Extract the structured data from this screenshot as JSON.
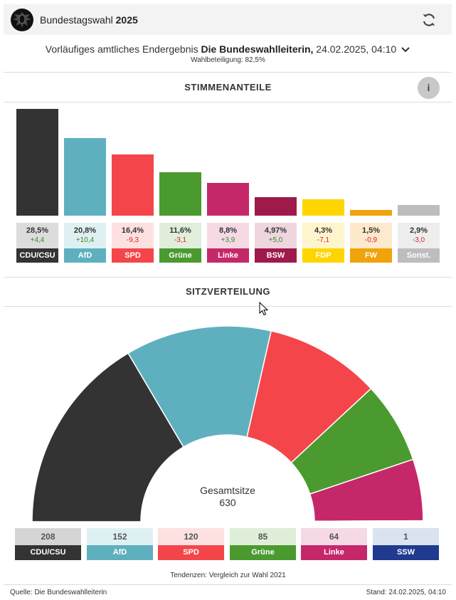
{
  "header": {
    "title_prefix": "Bundestagswahl ",
    "title_year": "2025",
    "logo_icon": "bundesadler-icon",
    "refresh_icon": "refresh-icon"
  },
  "result": {
    "text_prefix": "Vorläufiges amtliches Endergebnis ",
    "authority": "Die Bundeswahlleiterin,",
    "datetime": " 24.02.2025, 04:10",
    "turnout": "Wahlbeteiligung: 82,5%"
  },
  "sections": {
    "votes_title": "STIMMENANTEILE",
    "seats_title": "SITZVERTEILUNG",
    "info_label": "i"
  },
  "chart_data": [
    {
      "type": "bar",
      "title": "STIMMENANTEILE",
      "categories": [
        "CDU/CSU",
        "AfD",
        "SPD",
        "Grüne",
        "Linke",
        "BSW",
        "FDP",
        "FW",
        "Sonst."
      ],
      "values": [
        28.5,
        20.8,
        16.4,
        11.6,
        8.8,
        4.97,
        4.3,
        1.5,
        2.9
      ],
      "value_labels": [
        "28,5%",
        "20,8%",
        "16,4%",
        "11,6%",
        "8,8%",
        "4,97%",
        "4,3%",
        "1,5%",
        "2,9%"
      ],
      "changes": [
        "+4,4",
        "+10,4",
        "-9,3",
        "-3,1",
        "+3,9",
        "+5,0",
        "-7,1",
        "-0,9",
        "-3,0"
      ],
      "colors": [
        "#333333",
        "#5fb0bf",
        "#f4464a",
        "#4a9a2f",
        "#c52868",
        "#9e1a4b",
        "#ffd500",
        "#f0a30a",
        "#bdbdbd"
      ],
      "tints": [
        "#dcdcdc",
        "#dff0f3",
        "#fde1e1",
        "#e0eedb",
        "#f5dae5",
        "#efd6de",
        "#fff5cc",
        "#fde9cc",
        "#eeeeee"
      ],
      "ylim": [
        0,
        28.5
      ]
    },
    {
      "type": "pie",
      "title": "SITZVERTEILUNG",
      "categories": [
        "CDU/CSU",
        "AfD",
        "SPD",
        "Grüne",
        "Linke",
        "SSW"
      ],
      "values": [
        208,
        152,
        120,
        85,
        64,
        1
      ],
      "colors": [
        "#333333",
        "#5fb0bf",
        "#f4464a",
        "#4a9a2f",
        "#c52868",
        "#1f3a8f"
      ],
      "tints": [
        "#d5d5d5",
        "#dff0f3",
        "#fde1e1",
        "#dfeed8",
        "#f5dae5",
        "#dbe3f1"
      ],
      "total_label": "Gesamtsitze",
      "total": "630"
    }
  ],
  "footer": {
    "tendency": "Tendenzen: Vergleich zur Wahl 2021",
    "source": "Quelle: Die Bundeswahlleiterin",
    "stand": "Stand: 24.02.2025, 04:10"
  },
  "colors": {
    "positive": "#3a8a1e",
    "negative": "#e0232a",
    "header_bg": "#f3f3f3"
  }
}
